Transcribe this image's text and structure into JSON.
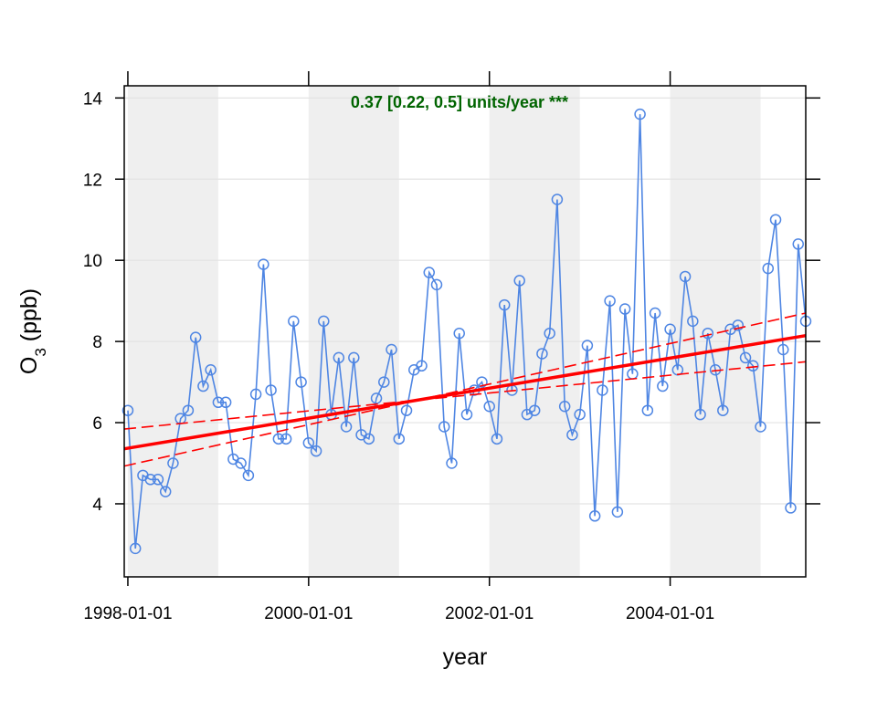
{
  "chart_data": {
    "type": "line",
    "xlabel": "year",
    "ylabel": {
      "main": "O",
      "sub": "3",
      "unit": " (ppb)"
    },
    "annotation": "0.37 [0.22, 0.5] units/year ***",
    "xlim": [
      1997.96,
      2005.5
    ],
    "ylim": [
      2.2,
      14.3
    ],
    "x_ticks": [
      {
        "value": 1998.0,
        "label": "1998-01-01"
      },
      {
        "value": 2000.0,
        "label": "2000-01-01"
      },
      {
        "value": 2002.0,
        "label": "2002-01-01"
      },
      {
        "value": 2004.0,
        "label": "2004-01-01"
      }
    ],
    "y_ticks": [
      {
        "value": 4,
        "label": "4"
      },
      {
        "value": 6,
        "label": "6"
      },
      {
        "value": 8,
        "label": "8"
      },
      {
        "value": 10,
        "label": "10"
      },
      {
        "value": 12,
        "label": "12"
      },
      {
        "value": 14,
        "label": "14"
      }
    ],
    "grid": true,
    "shaded_year_bands": [
      [
        1998,
        1999
      ],
      [
        2000,
        2001
      ],
      [
        2002,
        2003
      ],
      [
        2004,
        2005
      ]
    ],
    "series": [
      {
        "start_year": 1998,
        "start_month": 1,
        "values": [
          6.3,
          2.9,
          4.7,
          4.6,
          4.6,
          4.3,
          5.0,
          6.1,
          6.3,
          8.1,
          6.9,
          7.3,
          6.5,
          6.5,
          5.1,
          5.0,
          4.7,
          6.7,
          9.9,
          6.8,
          5.6,
          5.6,
          8.5,
          7.0,
          5.5,
          5.3,
          8.5,
          6.2,
          7.6,
          5.9,
          7.6,
          5.7,
          5.6,
          6.6,
          7.0,
          7.8,
          5.6,
          6.3,
          7.3,
          7.4,
          9.7,
          9.4,
          5.9,
          5.0,
          8.2,
          6.2,
          6.8,
          7.0,
          6.4,
          5.6,
          8.9,
          6.8,
          9.5,
          6.2,
          6.3,
          7.7,
          8.2,
          11.5,
          6.4,
          5.7,
          6.2,
          7.9,
          3.7,
          6.8,
          9.0,
          3.8,
          8.8,
          7.2,
          13.6,
          6.3,
          8.7,
          6.9,
          8.3,
          7.3,
          9.6,
          8.5,
          6.2,
          8.2,
          7.3,
          6.3,
          8.3,
          8.4,
          7.6,
          7.4,
          5.9,
          9.8,
          11.0,
          7.8,
          3.9,
          10.4,
          8.5
        ]
      }
    ],
    "trend": {
      "intercept_year": 1998.0,
      "intercept_value": 5.37,
      "slope": 0.37
    },
    "trend_lower": {
      "intercept_year": 1998.0,
      "intercept_value": 5.85,
      "slope": 0.22
    },
    "trend_upper": {
      "intercept_year": 1998.0,
      "intercept_value": 4.95,
      "slope": 0.5
    },
    "colors": {
      "series": "#4f86e3",
      "trend": "#ff0000",
      "band": "#efefef",
      "grid": "#e3e3e3",
      "annotation": "#006400"
    }
  }
}
